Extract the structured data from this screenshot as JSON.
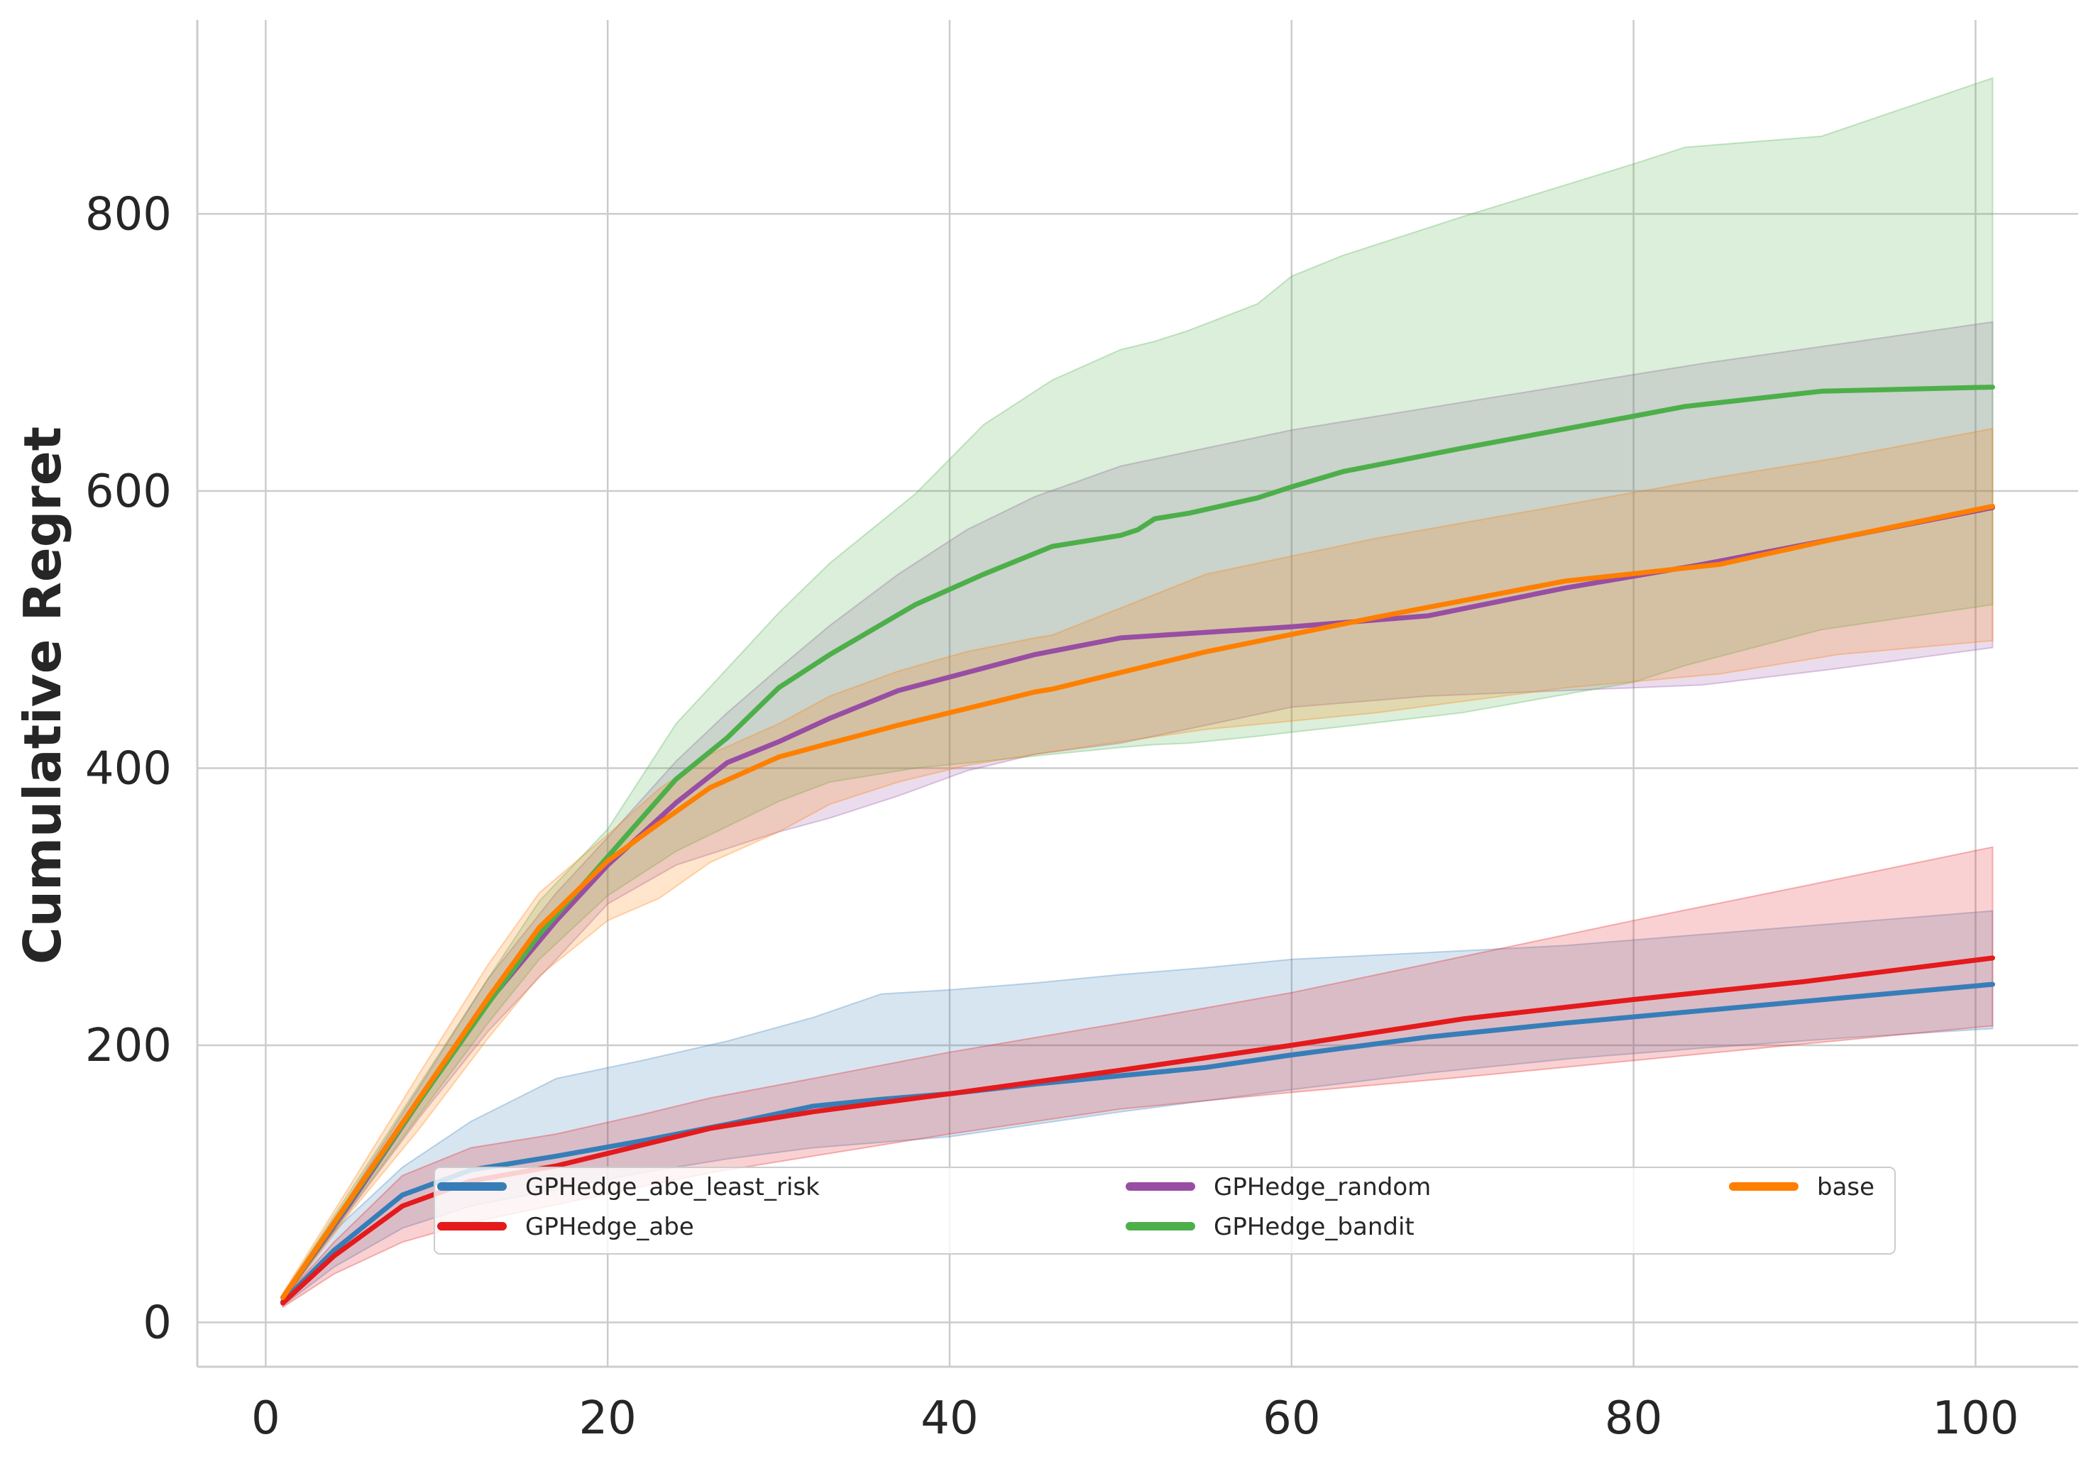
{
  "chart_data": {
    "type": "line",
    "title": "",
    "xlabel": "",
    "ylabel": "Cumulative Regret",
    "xlim": [
      -4,
      106
    ],
    "ylim": [
      -32,
      940
    ],
    "xticks": [
      0,
      20,
      40,
      60,
      80,
      100
    ],
    "yticks": [
      0,
      200,
      400,
      600,
      800
    ],
    "grid": true,
    "legend_position": "lower-center",
    "series": [
      {
        "name": "GPHedge_abe_least_risk",
        "color": "#377eb8",
        "x": [
          1,
          4,
          8,
          12,
          17,
          22,
          27,
          32,
          36,
          40,
          45,
          50,
          55,
          60,
          68,
          76,
          84,
          92,
          101
        ],
        "y": [
          15,
          52,
          92,
          110,
          120,
          131,
          143,
          156,
          161,
          165,
          172,
          178,
          184,
          193,
          206,
          216,
          225,
          234,
          244
        ],
        "lower": [
          12,
          40,
          68,
          84,
          96,
          108,
          118,
          126,
          130,
          134,
          143,
          152,
          160,
          168,
          180,
          190,
          198,
          205,
          212
        ],
        "upper": [
          18,
          66,
          112,
          145,
          176,
          189,
          203,
          220,
          237,
          240,
          245,
          251,
          256,
          262,
          267,
          272,
          280,
          288,
          297
        ]
      },
      {
        "name": "GPHedge_abe",
        "color": "#e41a1c",
        "x": [
          1,
          4,
          8,
          12,
          17,
          22,
          26,
          32,
          40,
          50,
          60,
          70,
          80,
          90,
          101
        ],
        "y": [
          14,
          48,
          84,
          102,
          113,
          128,
          140,
          152,
          165,
          182,
          200,
          219,
          233,
          246,
          263
        ],
        "lower": [
          11,
          35,
          58,
          72,
          85,
          98,
          108,
          120,
          136,
          154,
          166,
          177,
          189,
          201,
          214
        ],
        "upper": [
          17,
          58,
          106,
          126,
          136,
          150,
          162,
          176,
          195,
          216,
          238,
          264,
          290,
          315,
          343
        ]
      },
      {
        "name": "GPHedge_random",
        "color": "#984ea3",
        "x": [
          1,
          5,
          9,
          13,
          17,
          20,
          24,
          27,
          30,
          33,
          37,
          41,
          45,
          50,
          60,
          68,
          76,
          84,
          92,
          101
        ],
        "y": [
          18,
          87,
          160,
          231,
          290,
          330,
          375,
          404,
          419,
          436,
          456,
          469,
          482,
          494,
          502,
          510,
          530,
          547,
          566,
          588
        ],
        "lower": [
          16,
          82,
          148,
          210,
          262,
          302,
          330,
          342,
          354,
          364,
          380,
          398,
          410,
          418,
          444,
          452,
          456,
          460,
          472,
          487
        ],
        "upper": [
          20,
          93,
          170,
          248,
          310,
          350,
          405,
          440,
          472,
          503,
          540,
          572,
          596,
          618,
          644,
          660,
          676,
          692,
          706,
          722
        ]
      },
      {
        "name": "GPHedge_bandit",
        "color": "#4daf4a",
        "x": [
          1,
          5,
          9,
          13,
          16,
          20,
          24,
          27,
          30,
          33,
          38,
          42,
          46,
          50,
          51,
          52,
          54,
          58,
          60,
          63,
          70,
          80,
          83,
          91,
          101
        ],
        "y": [
          18,
          89,
          160,
          230,
          280,
          336,
          392,
          422,
          458,
          482,
          518,
          540,
          560,
          568,
          572,
          580,
          584,
          595,
          603,
          614,
          631,
          654,
          661,
          672,
          675
        ],
        "lower": [
          16,
          83,
          150,
          216,
          262,
          308,
          340,
          358,
          376,
          390,
          400,
          405,
          410,
          415,
          416,
          417,
          418,
          423,
          426,
          430,
          440,
          462,
          474,
          500,
          518
        ],
        "upper": [
          20,
          96,
          172,
          248,
          304,
          356,
          432,
          472,
          512,
          548,
          598,
          648,
          680,
          702,
          705,
          708,
          716,
          735,
          755,
          770,
          798,
          836,
          848,
          856,
          898
        ]
      },
      {
        "name": "base",
        "color": "#ff7f00",
        "x": [
          1,
          5,
          9,
          13,
          16,
          20,
          23,
          26,
          30,
          33,
          37,
          41,
          45,
          46,
          55,
          65,
          76,
          85,
          92,
          101
        ],
        "y": [
          18,
          90,
          162,
          234,
          285,
          333,
          360,
          386,
          408,
          418,
          431,
          443,
          455,
          457,
          484,
          509,
          535,
          547,
          566,
          589
        ],
        "lower": [
          15,
          80,
          140,
          205,
          250,
          290,
          306,
          332,
          354,
          374,
          390,
          402,
          410,
          412,
          428,
          440,
          458,
          468,
          482,
          492
        ],
        "upper": [
          21,
          100,
          180,
          258,
          310,
          352,
          385,
          410,
          432,
          452,
          470,
          484,
          494,
          496,
          540,
          566,
          590,
          610,
          624,
          645
        ]
      }
    ],
    "legend": {
      "items": [
        {
          "label": "GPHedge_abe_least_risk",
          "color": "#377eb8"
        },
        {
          "label": "GPHedge_abe",
          "color": "#e41a1c"
        },
        {
          "label": "GPHedge_random",
          "color": "#984ea3"
        },
        {
          "label": "GPHedge_bandit",
          "color": "#4daf4a"
        },
        {
          "label": "base",
          "color": "#ff7f00"
        }
      ]
    }
  }
}
